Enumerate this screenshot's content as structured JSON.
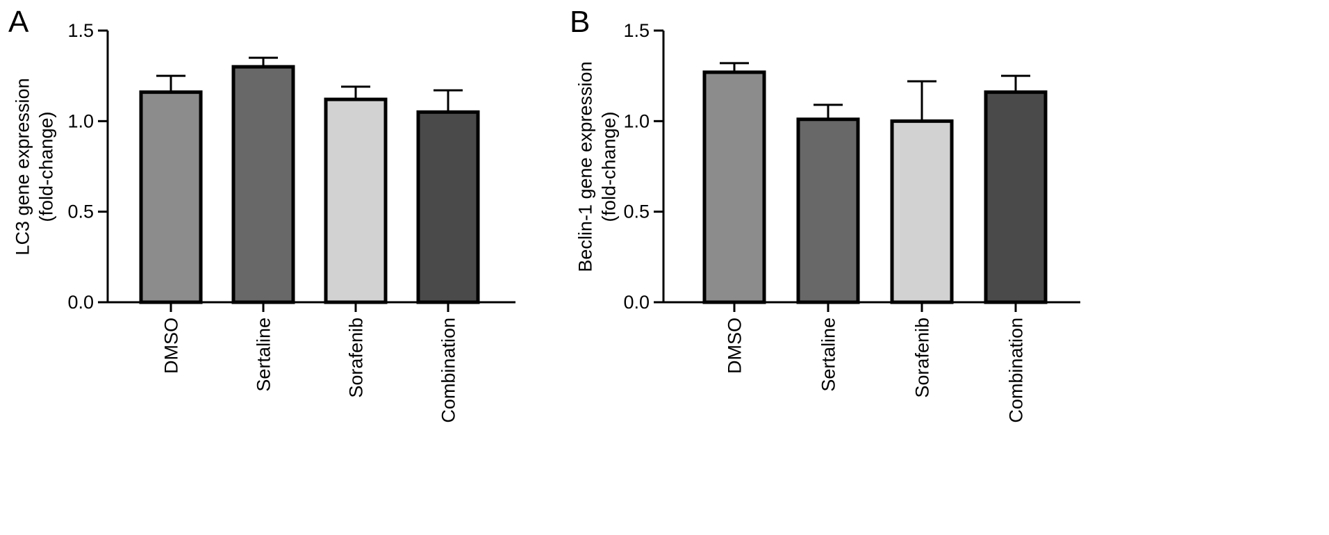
{
  "chart_data": [
    {
      "panel": "A",
      "type": "bar",
      "title": "",
      "ylabel": [
        "LC3 gene expression",
        "(fold-change)"
      ],
      "xlabel": "",
      "ylim": [
        0,
        1.5
      ],
      "yticks": [
        "0.0",
        "0.5",
        "1.0",
        "1.5"
      ],
      "grid": false,
      "categories": [
        "DMSO",
        "Sertaline",
        "Sorafenib",
        "Combination"
      ],
      "values": [
        1.16,
        1.3,
        1.12,
        1.05
      ],
      "error_upper": [
        1.25,
        1.35,
        1.19,
        1.17
      ],
      "colors": [
        "#8c8c8c",
        "#686868",
        "#d2d2d2",
        "#4a4a4a"
      ]
    },
    {
      "panel": "B",
      "type": "bar",
      "title": "",
      "ylabel": [
        "Beclin-1 gene expression",
        "(fold-change)"
      ],
      "xlabel": "",
      "ylim": [
        0,
        1.5
      ],
      "yticks": [
        "0.0",
        "0.5",
        "1.0",
        "1.5"
      ],
      "grid": false,
      "categories": [
        "DMSO",
        "Sertaline",
        "Sorafenib",
        "Combination"
      ],
      "values": [
        1.27,
        1.01,
        1.0,
        1.16
      ],
      "error_upper": [
        1.32,
        1.09,
        1.22,
        1.25
      ],
      "colors": [
        "#8c8c8c",
        "#686868",
        "#d2d2d2",
        "#4a4a4a"
      ]
    }
  ]
}
